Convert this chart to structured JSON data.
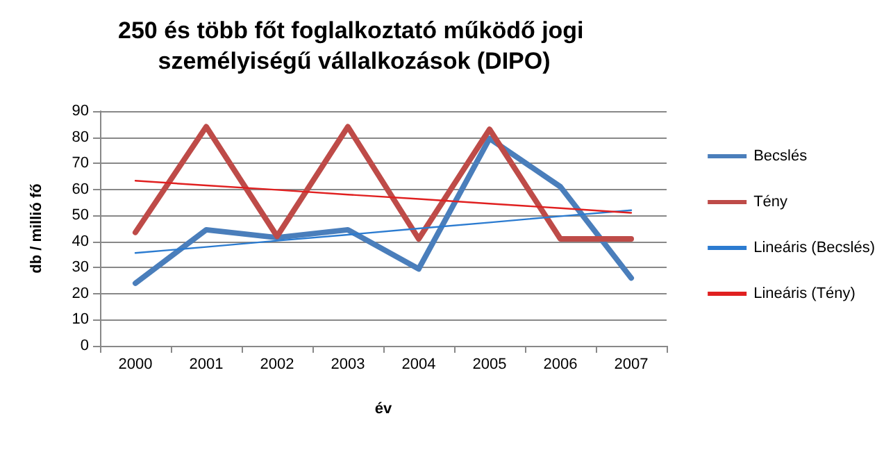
{
  "chart_data": {
    "type": "line",
    "title": "250 és több főt foglalkoztató működő jogi személyiségű vállalkozások (DIPO)",
    "xlabel": "év",
    "ylabel": "db / millió fő",
    "categories": [
      "2000",
      "2001",
      "2002",
      "2003",
      "2004",
      "2005",
      "2006",
      "2007"
    ],
    "series": [
      {
        "name": "Becslés",
        "color": "#4a7ebb",
        "values": [
          24,
          44.5,
          41.5,
          44.5,
          29.5,
          79.5,
          61,
          26
        ]
      },
      {
        "name": "Tény",
        "color": "#be4b48",
        "values": [
          43.5,
          84,
          42,
          84,
          41,
          83,
          41,
          41
        ]
      },
      {
        "name": "Lineáris (Becslés)",
        "type": "line",
        "color": "#2b7bd0",
        "values": [
          35.6,
          37.9,
          40.3,
          42.6,
          45.0,
          47.3,
          49.7,
          52.0
        ]
      },
      {
        "name": "Lineáris (Tény)",
        "type": "line",
        "color": "#e02020",
        "values": [
          63.3,
          61.5,
          59.8,
          58.0,
          56.3,
          54.5,
          52.8,
          51.0
        ]
      }
    ],
    "ylim": [
      0,
      90
    ],
    "yticks": [
      0,
      10,
      20,
      30,
      40,
      50,
      60,
      70,
      80,
      90
    ],
    "grid": "y",
    "legend": "right",
    "marker": "none",
    "line_style": "solid"
  }
}
